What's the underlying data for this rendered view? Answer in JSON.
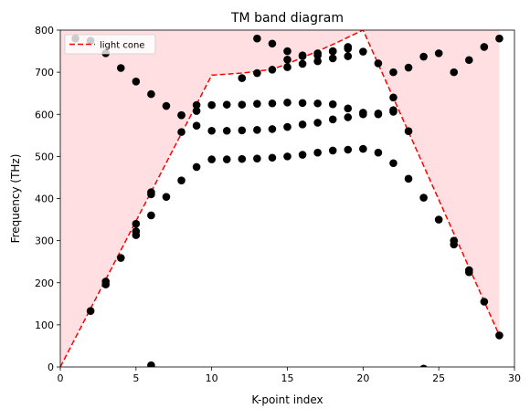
{
  "chart_data": {
    "type": "scatter",
    "title": "TM band diagram",
    "xlabel": "K-point index",
    "ylabel": "Frequency (THz)",
    "xlim": [
      0,
      30
    ],
    "ylim": [
      0,
      800
    ],
    "x_ticks": [
      0,
      5,
      10,
      15,
      20,
      25,
      30
    ],
    "y_ticks": [
      0,
      100,
      200,
      300,
      400,
      500,
      600,
      700,
      800
    ],
    "grid": false,
    "legend": {
      "placement": "top-left",
      "entries": [
        "light cone"
      ]
    },
    "light_cone": {
      "name": "light cone",
      "color": "#ff0000",
      "fill_color": "#ffc0c5",
      "x": [
        0,
        10,
        12,
        14,
        15,
        16,
        17,
        18,
        19,
        20,
        29
      ],
      "y": [
        0,
        693,
        698,
        707,
        720,
        735,
        750,
        766,
        783,
        800,
        75
      ]
    },
    "bands": {
      "color": "#000000",
      "x": [
        1,
        2,
        3,
        4,
        5,
        6,
        7,
        8,
        9,
        2,
        3,
        4,
        5,
        6,
        7,
        8,
        9,
        10,
        11,
        12,
        13,
        14,
        15,
        16,
        17,
        18,
        19,
        20,
        21,
        22,
        23,
        24,
        25,
        26,
        27,
        28,
        29,
        3,
        5,
        6,
        8,
        9,
        10,
        11,
        12,
        13,
        14,
        15,
        16,
        17,
        18,
        19,
        20,
        21,
        22,
        23,
        26,
        27,
        5,
        6,
        8,
        9,
        10,
        11,
        12,
        13,
        14,
        15,
        16,
        17,
        18,
        19,
        20,
        21,
        22,
        12,
        13,
        14,
        15,
        16,
        17,
        18,
        19,
        20,
        21,
        22,
        23,
        24,
        25,
        26,
        27,
        28,
        29,
        13,
        14,
        15,
        16,
        17,
        18,
        19,
        22,
        15,
        16,
        17,
        18,
        19,
        6,
        24
      ],
      "y": [
        780,
        775,
        745,
        710,
        678,
        648,
        620,
        598,
        608,
        133,
        196,
        259,
        313,
        360,
        404,
        443,
        475,
        493,
        493,
        494,
        495,
        497,
        500,
        504,
        509,
        514,
        516,
        518,
        509,
        484,
        447,
        402,
        350,
        291,
        225,
        155,
        75,
        203,
        322,
        410,
        558,
        573,
        561,
        561,
        562,
        563,
        565,
        570,
        576,
        580,
        588,
        593,
        600,
        602,
        610,
        560,
        300,
        230,
        340,
        415,
        598,
        622,
        622,
        623,
        623,
        625,
        626,
        628,
        627,
        626,
        624,
        614,
        604,
        600,
        606,
        686,
        698,
        706,
        712,
        720,
        726,
        733,
        738,
        749,
        721,
        700,
        711,
        737,
        745,
        700,
        729,
        760,
        780,
        780,
        768,
        750,
        738,
        740,
        750,
        756,
        640,
        730,
        740,
        745,
        750,
        760,
        4,
        -4
      ]
    }
  }
}
